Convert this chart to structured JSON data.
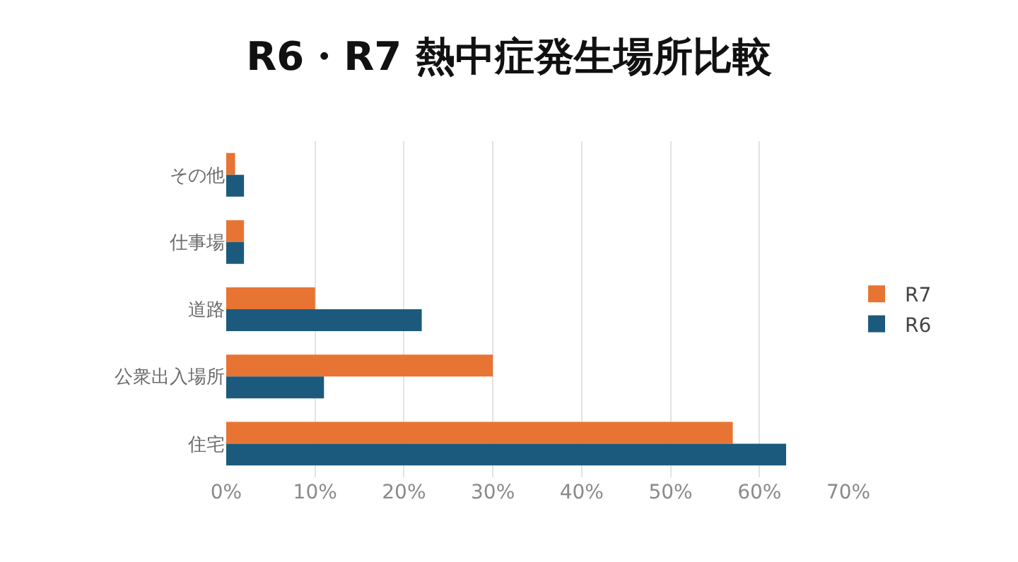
{
  "chart_data": {
    "type": "bar",
    "orientation": "horizontal",
    "title": "R6・R7 熱中症発生場所比較",
    "categories": [
      "その他",
      "仕事場",
      "道路",
      "公衆出入場所",
      "住宅"
    ],
    "series": [
      {
        "name": "R7",
        "color": "#e87434",
        "values": [
          1,
          2,
          10,
          30,
          57
        ]
      },
      {
        "name": "R6",
        "color": "#1b5a7d",
        "values": [
          2,
          2,
          22,
          11,
          63
        ]
      }
    ],
    "xlim": [
      0,
      70
    ],
    "xticks": [
      {
        "value": 0,
        "label": "0%"
      },
      {
        "value": 10,
        "label": "10%"
      },
      {
        "value": 20,
        "label": "20%"
      },
      {
        "value": 30,
        "label": "30%"
      },
      {
        "value": 40,
        "label": "40%"
      },
      {
        "value": 50,
        "label": "50%"
      },
      {
        "value": 60,
        "label": "60%"
      },
      {
        "value": 70,
        "label": "70%"
      }
    ],
    "grid": "x",
    "legend": "right"
  }
}
